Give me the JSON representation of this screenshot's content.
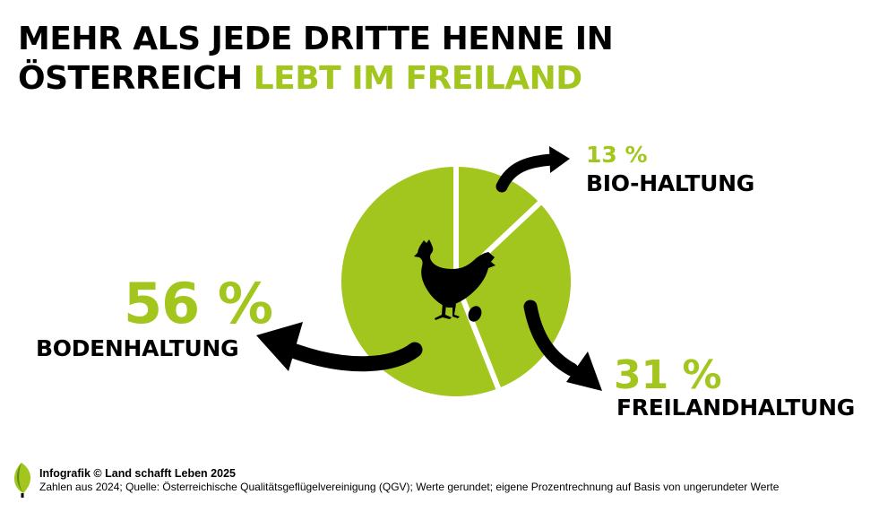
{
  "title": {
    "line1": "MEHR ALS JEDE DRITTE HENNE IN",
    "line2_dark": "ÖSTERREICH",
    "line2_accent": "LEBT IM FREILAND"
  },
  "colors": {
    "accent": "#a2c61e",
    "text": "#000000",
    "background": "#ffffff"
  },
  "icons": {
    "center": "hen-with-egg-icon",
    "logo": "leaf-logo-icon",
    "arrows": "curved-arrow-icon"
  },
  "chart_data": {
    "type": "pie",
    "categories": [
      "BIO-HALTUNG",
      "FREILANDHALTUNG",
      "BODENHALTUNG"
    ],
    "values": [
      13,
      31,
      56
    ],
    "value_labels": [
      "13 %",
      "31 %",
      "56 %"
    ],
    "unit": "%",
    "color": "#a2c61e",
    "title": "MEHR ALS JEDE DRITTE HENNE IN ÖSTERREICH LEBT IM FREILAND"
  },
  "footer": {
    "credit": "Infografik © Land schafft Leben 2025",
    "source": "Zahlen aus 2024; Quelle: Österreichische Qualitätsgeflügelvereinigung (QGV); Werte gerundet; eigene Prozentrechnung auf Basis von ungerundeter Werte"
  }
}
